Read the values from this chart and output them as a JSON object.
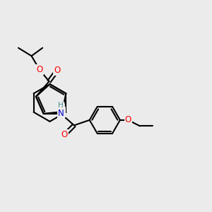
{
  "bg_color": "#ebebeb",
  "bond_color": "#000000",
  "bond_width": 1.5,
  "figsize": [
    3.0,
    3.0
  ],
  "dpi": 100,
  "atom_colors": {
    "S": "#b8b800",
    "O": "#ff0000",
    "N": "#0000cc",
    "H": "#4a9090",
    "C": "#000000"
  },
  "scale": 1.0
}
